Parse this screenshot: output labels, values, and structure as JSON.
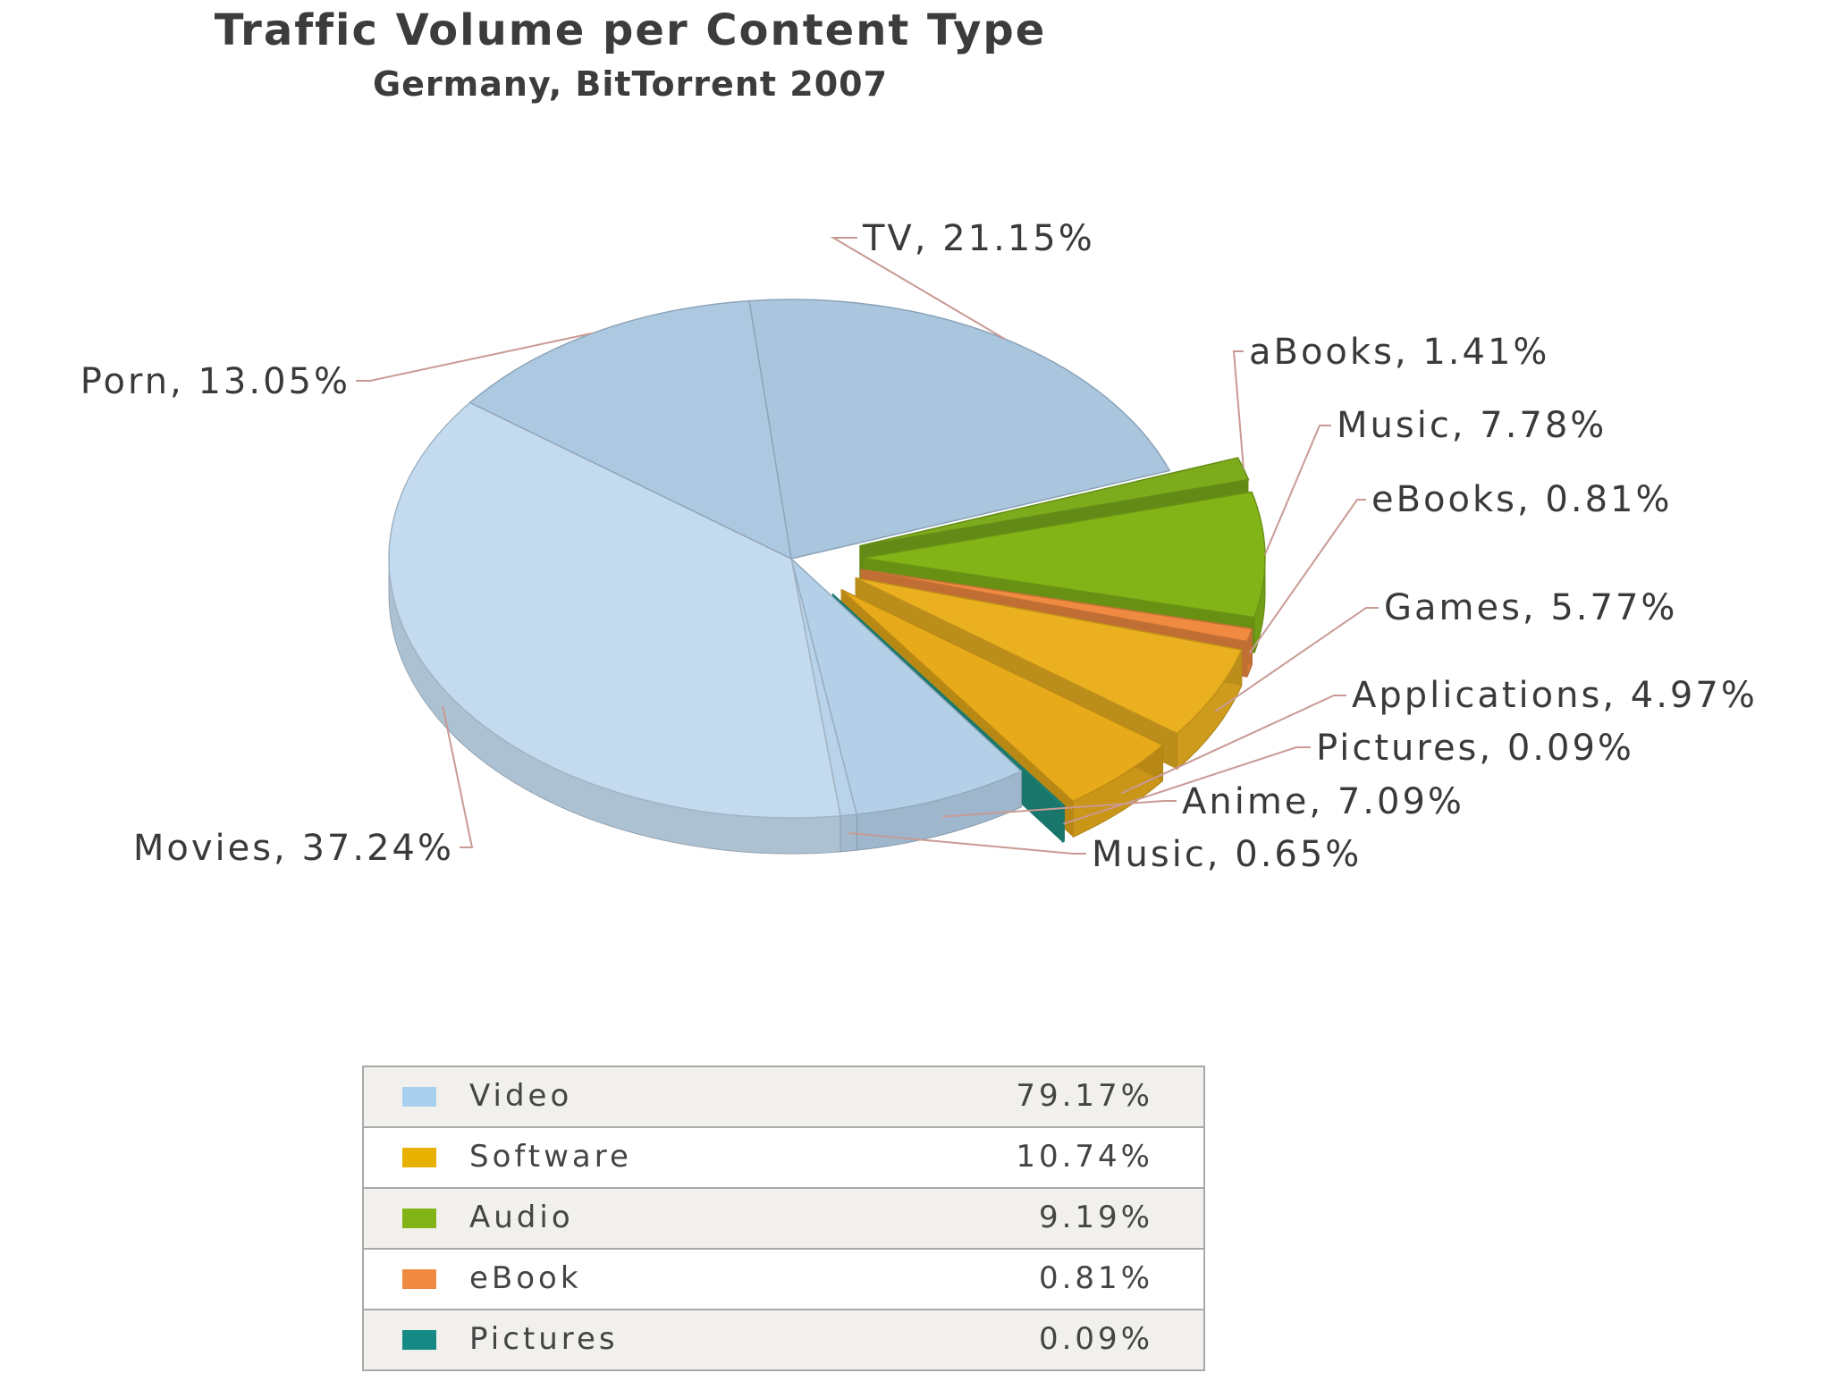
{
  "chart_data": {
    "type": "pie",
    "title": "Traffic Volume per Content Type",
    "subtitle": "Germany, BitTorrent 2007",
    "is_3d": true,
    "slices": [
      {
        "label": "TV",
        "value": 21.15,
        "display": "TV, 21.15%",
        "group": "Video",
        "color": "#a9c6de"
      },
      {
        "label": "aBooks",
        "value": 1.41,
        "display": "aBooks, 1.41%",
        "group": "Audio",
        "color": "#7cac1c"
      },
      {
        "label": "Music",
        "value": 7.78,
        "display": "Music, 7.78%",
        "group": "Audio",
        "color": "#82b418"
      },
      {
        "label": "eBooks",
        "value": 0.81,
        "display": "eBooks, 0.81%",
        "group": "eBook",
        "color": "#f08a40"
      },
      {
        "label": "Games",
        "value": 5.77,
        "display": "Games, 5.77%",
        "group": "Software",
        "color": "#eab020"
      },
      {
        "label": "Applications",
        "value": 4.97,
        "display": "Applications, 4.97%",
        "group": "Software",
        "color": "#e6aa1a"
      },
      {
        "label": "Pictures",
        "value": 0.09,
        "display": "Pictures, 0.09%",
        "group": "Pictures",
        "color": "#1e9486"
      },
      {
        "label": "Anime",
        "value": 7.09,
        "display": "Anime, 7.09%",
        "group": "Video",
        "color": "#b4d0e8"
      },
      {
        "label": "Music",
        "value": 0.65,
        "display": "Music, 0.65%",
        "group": "Video",
        "color": "#b9d3ea"
      },
      {
        "label": "Movies",
        "value": 37.24,
        "display": "Movies, 37.24%",
        "group": "Video",
        "color": "#c4dbef"
      },
      {
        "label": "Porn",
        "value": 13.05,
        "display": "Porn, 13.05%",
        "group": "Video",
        "color": "#adc9e1"
      }
    ],
    "legend": [
      {
        "name": "Video",
        "value": "79.17%",
        "color": "#a8cfee"
      },
      {
        "name": "Software",
        "value": "10.74%",
        "color": "#e8b000"
      },
      {
        "name": "Audio",
        "value": "9.19%",
        "color": "#82b418"
      },
      {
        "name": "eBook",
        "value": "0.81%",
        "color": "#f08a40"
      },
      {
        "name": "Pictures",
        "value": "0.09%",
        "color": "#158a84"
      }
    ],
    "legend_position": "bottom"
  }
}
